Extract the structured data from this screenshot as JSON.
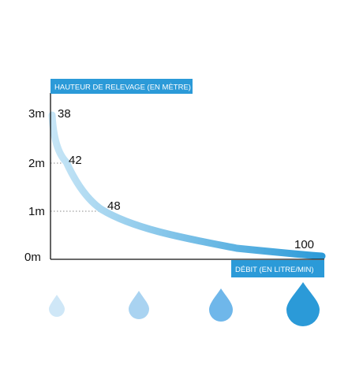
{
  "chart_data": {
    "type": "line",
    "title": "",
    "ylabel": "HAUTEUR DE RELEVAGE (EN MÈTRE)",
    "xlabel": "DÉBIT (EN LITRE/MIN)",
    "y_ticks": [
      "0m",
      "1m",
      "2m",
      "3m"
    ],
    "ylim": [
      0,
      3
    ],
    "grid": false,
    "colors": {
      "curve_start": "#c6e5f6",
      "curve_end": "#2b9ad8",
      "label_bg": "#2b9ad8",
      "axis": "#111111",
      "guide": "#888888"
    },
    "series": [
      {
        "points": [
          {
            "x": 38,
            "y": 3,
            "label": "38"
          },
          {
            "x": 42,
            "y": 2,
            "label": "42"
          },
          {
            "x": 48,
            "y": 1,
            "label": "48"
          },
          {
            "x": 100,
            "y": 0,
            "label": "100"
          }
        ]
      }
    ],
    "drops": [
      {
        "icon": "water-drop-icon",
        "color": "#cfe7f7"
      },
      {
        "icon": "water-drop-icon",
        "color": "#a9d3f1"
      },
      {
        "icon": "water-drop-icon",
        "color": "#6fb7ea"
      },
      {
        "icon": "water-drop-icon",
        "color": "#2b9ad8"
      }
    ]
  }
}
